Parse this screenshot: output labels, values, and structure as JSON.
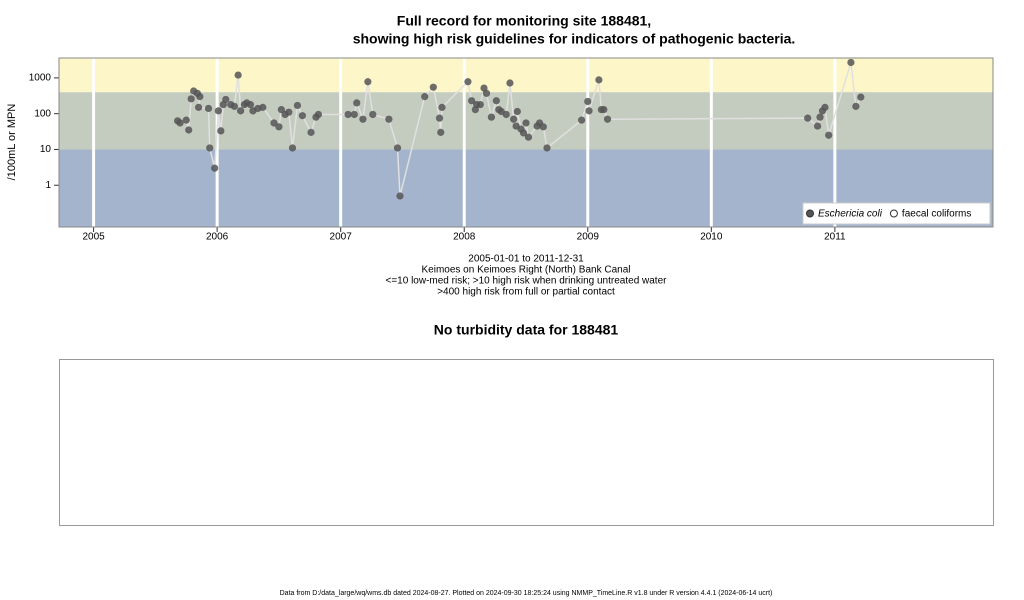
{
  "chart_data": {
    "type": "scatter",
    "title_lines": [
      "Full record for monitoring site 188481,",
      "showing high risk guidelines for indicators of pathogenic bacteria."
    ],
    "y_label": "/100mL or MPN",
    "caption": [
      "2005-01-01 to 2011-12-31",
      "Keimoes on Keimoes Right (North) Bank Canal",
      "<=10 low-med risk; >10 high risk when drinking untreated water",
      ">400 high risk from full or partial contact"
    ],
    "log_y": true,
    "ylim": [
      0.068,
      3600
    ],
    "yticks": [
      1,
      10,
      100,
      1000
    ],
    "xlim": [
      2004.72,
      2012.28
    ],
    "xticks": [
      2005,
      2006,
      2007,
      2008,
      2009,
      2010,
      2011
    ],
    "guideline_levels": [
      10,
      400
    ],
    "band_colors": [
      "#a4b4cc",
      "#c4cbbf",
      "#fdf6c8"
    ],
    "legend_position": "lower right",
    "series": [
      {
        "name": "Eschericia coli",
        "color": "#555555",
        "line_color": "#e0e0e0",
        "x": [
          2005.68,
          2005.7,
          2005.75,
          2005.77,
          2005.79,
          2005.81,
          2005.84,
          2005.86,
          2005.85,
          2005.93,
          2005.94,
          2005.98,
          2006.01,
          2006.03,
          2006.05,
          2006.07,
          2006.11,
          2006.14,
          2006.17,
          2006.19,
          2006.22,
          2006.24,
          2006.27,
          2006.29,
          2006.33,
          2006.37,
          2006.46,
          2006.5,
          2006.52,
          2006.55,
          2006.58,
          2006.61,
          2006.65,
          2006.69,
          2006.76,
          2006.8,
          2006.82,
          2007.06,
          2007.11,
          2007.13,
          2007.18,
          2007.22,
          2007.26,
          2007.39,
          2007.46,
          2007.48,
          2007.68,
          2007.75,
          2007.8,
          2007.81,
          2007.82,
          2008.03,
          2008.06,
          2008.09,
          2008.1,
          2008.13,
          2008.16,
          2008.18,
          2008.22,
          2008.26,
          2008.28,
          2008.3,
          2008.34,
          2008.37,
          2008.4,
          2008.42,
          2008.43,
          2008.46,
          2008.48,
          2008.5,
          2008.52,
          2008.59,
          2008.61,
          2008.64,
          2008.67,
          2008.95,
          2009.0,
          2009.01,
          2009.09,
          2009.11,
          2009.13,
          2009.16,
          2010.78,
          2010.86,
          2010.88,
          2010.9,
          2010.92,
          2010.95,
          2011.13,
          2011.17,
          2011.21
        ],
        "values": [
          63,
          55,
          66,
          35,
          260,
          430,
          370,
          300,
          150,
          140,
          11,
          3,
          120,
          33,
          180,
          250,
          180,
          160,
          1200,
          120,
          180,
          200,
          180,
          120,
          140,
          150,
          55,
          43,
          130,
          95,
          110,
          11,
          170,
          88,
          30,
          80,
          95,
          95,
          95,
          200,
          70,
          780,
          95,
          70,
          11,
          0.5,
          300,
          550,
          75,
          30,
          150,
          780,
          230,
          130,
          180,
          180,
          520,
          370,
          80,
          230,
          130,
          115,
          95,
          720,
          70,
          45,
          115,
          37,
          29,
          55,
          22,
          45,
          55,
          43,
          11,
          66,
          220,
          120,
          880,
          130,
          130,
          70,
          75,
          45,
          80,
          120,
          150,
          25,
          2700,
          160,
          290
        ]
      },
      {
        "name": "faecal coliforms",
        "color": "#ffffff",
        "x": [],
        "values": []
      }
    ]
  },
  "turbidity": {
    "title": "No turbidity data for 188481"
  },
  "footer": "Data from D:/data_large/wq/wms.db dated 2024-08-27. Plotted on 2024-09-30 18:25:24 using NMMP_TimeLine.R v1.8 under R version 4.4.1 (2024-06-14 ucrt)"
}
